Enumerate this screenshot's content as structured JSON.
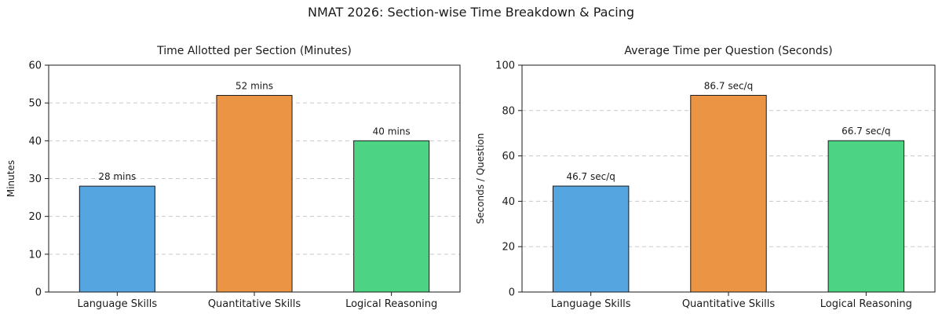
{
  "figure": {
    "title": "NMAT 2026: Section-wise Time Breakdown & Pacing"
  },
  "chart_data": [
    {
      "type": "bar",
      "title": "Time Allotted per Section (Minutes)",
      "xlabel": "",
      "ylabel": "Minutes",
      "categories": [
        "Language Skills",
        "Quantitative Skills",
        "Logical Reasoning"
      ],
      "values": [
        28,
        52,
        40
      ],
      "data_labels": [
        "28 mins",
        "52 mins",
        "40 mins"
      ],
      "colors": [
        "#55a5e0",
        "#eb9444",
        "#4cd484"
      ],
      "ylim": [
        0,
        60
      ],
      "yticks": [
        0,
        10,
        20,
        30,
        40,
        50,
        60
      ],
      "grid": "horizontal-dashed"
    },
    {
      "type": "bar",
      "title": "Average Time per Question (Seconds)",
      "xlabel": "",
      "ylabel": "Seconds / Question",
      "categories": [
        "Language Skills",
        "Quantitative Skills",
        "Logical Reasoning"
      ],
      "values": [
        46.7,
        86.7,
        66.7
      ],
      "data_labels": [
        "46.7 sec/q",
        "86.7 sec/q",
        "66.7 sec/q"
      ],
      "colors": [
        "#55a5e0",
        "#eb9444",
        "#4cd484"
      ],
      "ylim": [
        0,
        100
      ],
      "yticks": [
        0,
        20,
        40,
        60,
        80,
        100
      ],
      "grid": "horizontal-dashed"
    }
  ]
}
